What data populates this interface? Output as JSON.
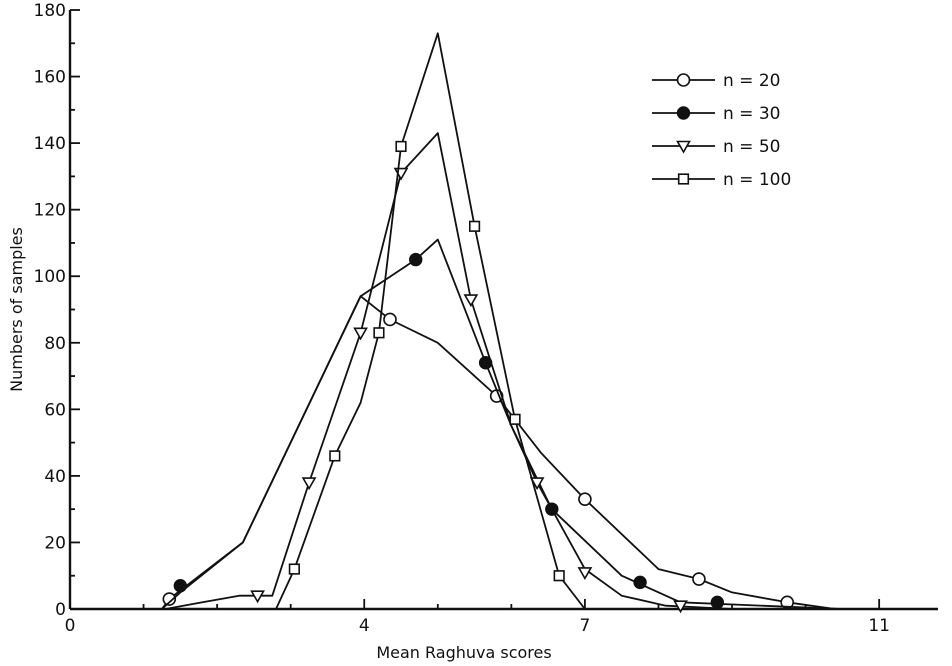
{
  "chart_data": {
    "type": "line",
    "title": "",
    "xlabel": "Mean Raghuva scores",
    "ylabel": "Numbers of samples",
    "xlim": [
      0,
      11.8
    ],
    "ylim": [
      0,
      180
    ],
    "x_ticks": [
      {
        "value": 0,
        "label": "0"
      },
      {
        "value": 4,
        "label": "4"
      },
      {
        "value": 7,
        "label": "7"
      },
      {
        "value": 11,
        "label": "11"
      }
    ],
    "y_ticks": [
      {
        "value": 0,
        "label": "0"
      },
      {
        "value": 20,
        "label": "20"
      },
      {
        "value": 40,
        "label": "40"
      },
      {
        "value": 60,
        "label": "60"
      },
      {
        "value": 80,
        "label": "80"
      },
      {
        "value": 100,
        "label": "100"
      },
      {
        "value": 120,
        "label": "120"
      },
      {
        "value": 140,
        "label": "140"
      },
      {
        "value": 160,
        "label": "160"
      },
      {
        "value": 180,
        "label": "180"
      }
    ],
    "grid": false,
    "legend_position": "top-right",
    "series": [
      {
        "name": "n = 20",
        "marker": "open-circle",
        "line": [
          [
            0,
            0
          ],
          [
            1.25,
            0
          ],
          [
            1.35,
            3
          ],
          [
            2.35,
            20
          ],
          [
            3.95,
            94
          ],
          [
            4.35,
            87
          ],
          [
            5.0,
            80
          ],
          [
            5.8,
            64
          ],
          [
            6.4,
            47
          ],
          [
            7.0,
            33
          ],
          [
            8.0,
            12
          ],
          [
            8.55,
            9
          ],
          [
            9.0,
            5
          ],
          [
            9.75,
            2
          ],
          [
            10.4,
            0
          ],
          [
            11.8,
            0
          ]
        ],
        "points": [
          [
            1.35,
            3
          ],
          [
            4.35,
            87
          ],
          [
            5.8,
            64
          ],
          [
            7.0,
            33
          ],
          [
            8.55,
            9
          ],
          [
            9.75,
            2
          ]
        ]
      },
      {
        "name": "n = 30",
        "marker": "filled-circle",
        "line": [
          [
            1.25,
            0
          ],
          [
            1.5,
            5
          ],
          [
            2.35,
            20
          ],
          [
            3.95,
            94
          ],
          [
            4.7,
            105
          ],
          [
            5.0,
            111
          ],
          [
            5.65,
            74
          ],
          [
            6.0,
            55
          ],
          [
            6.55,
            30
          ],
          [
            7.5,
            10
          ],
          [
            8.3,
            2
          ],
          [
            10.5,
            0
          ]
        ],
        "points": [
          [
            1.5,
            7
          ],
          [
            4.7,
            105
          ],
          [
            5.65,
            74
          ],
          [
            6.55,
            30
          ],
          [
            7.75,
            8
          ],
          [
            8.8,
            2
          ]
        ]
      },
      {
        "name": "n = 50",
        "marker": "open-triangle",
        "line": [
          [
            1.3,
            0
          ],
          [
            1.8,
            2
          ],
          [
            2.3,
            4
          ],
          [
            2.75,
            4
          ],
          [
            3.25,
            38
          ],
          [
            3.95,
            83
          ],
          [
            4.5,
            131
          ],
          [
            5.0,
            143
          ],
          [
            5.45,
            93
          ],
          [
            6.0,
            55
          ],
          [
            6.35,
            38
          ],
          [
            7.0,
            12
          ],
          [
            7.5,
            4
          ],
          [
            8.1,
            1
          ],
          [
            9.0,
            0
          ]
        ],
        "points": [
          [
            2.55,
            4
          ],
          [
            3.25,
            38
          ],
          [
            3.95,
            83
          ],
          [
            4.5,
            131
          ],
          [
            5.45,
            93
          ],
          [
            6.35,
            38
          ],
          [
            7.0,
            11
          ],
          [
            8.3,
            1
          ]
        ]
      },
      {
        "name": "n = 100",
        "marker": "open-square",
        "line": [
          [
            2.8,
            0
          ],
          [
            3.05,
            12
          ],
          [
            3.6,
            46
          ],
          [
            3.95,
            62
          ],
          [
            4.2,
            83
          ],
          [
            4.5,
            139
          ],
          [
            5.0,
            173
          ],
          [
            5.5,
            115
          ],
          [
            6.05,
            57
          ],
          [
            6.65,
            10
          ],
          [
            7.0,
            0
          ]
        ],
        "points": [
          [
            3.05,
            12
          ],
          [
            3.6,
            46
          ],
          [
            4.2,
            83
          ],
          [
            4.5,
            139
          ],
          [
            5.5,
            115
          ],
          [
            6.05,
            57
          ],
          [
            6.65,
            10
          ]
        ]
      }
    ]
  }
}
